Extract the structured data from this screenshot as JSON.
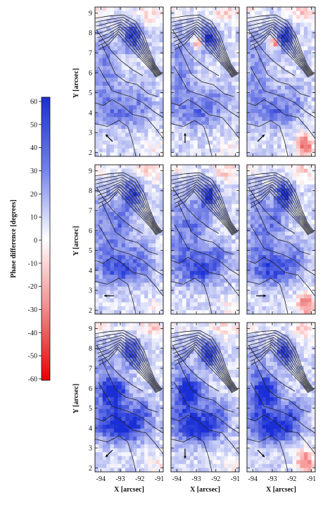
{
  "colorbar": {
    "label": "Phase difference [degrees]",
    "ticks": [
      "60",
      "50",
      "40",
      "30",
      "20",
      "10",
      "0",
      "-10",
      "-20",
      "-30",
      "-40",
      "-50",
      "-60"
    ],
    "colors": {
      "max": "#1a2fd6",
      "mid": "#ffffff",
      "min": "#e60000"
    }
  },
  "axes": {
    "ylabel": "Y [arcsec]",
    "xlabel": "X [arcsec]",
    "yticks": [
      "9",
      "8",
      "7",
      "6",
      "5",
      "4",
      "3",
      "2"
    ],
    "xticks": [
      "-94",
      "-93",
      "-92",
      "-91"
    ]
  },
  "panels": [
    {
      "row": 0,
      "col": 0,
      "arrow": "up-left"
    },
    {
      "row": 0,
      "col": 1,
      "arrow": "up"
    },
    {
      "row": 0,
      "col": 2,
      "arrow": "up-right"
    },
    {
      "row": 1,
      "col": 0,
      "arrow": "left"
    },
    {
      "row": 1,
      "col": 1,
      "arrow": "none"
    },
    {
      "row": 1,
      "col": 2,
      "arrow": "right"
    },
    {
      "row": 2,
      "col": 0,
      "arrow": "down-left"
    },
    {
      "row": 2,
      "col": 1,
      "arrow": "down"
    },
    {
      "row": 2,
      "col": 2,
      "arrow": "down-right"
    }
  ]
}
